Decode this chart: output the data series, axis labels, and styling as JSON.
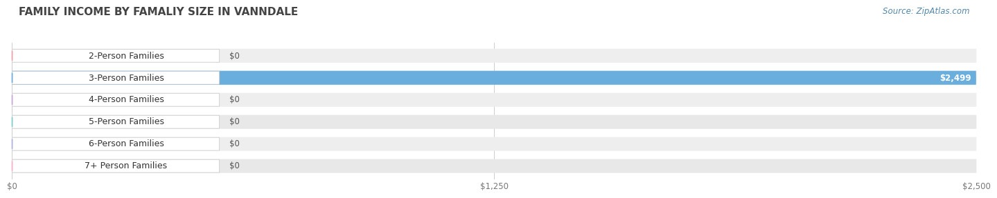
{
  "title": "FAMILY INCOME BY FAMALIY SIZE IN VANNDALE",
  "source": "Source: ZipAtlas.com",
  "categories": [
    "2-Person Families",
    "3-Person Families",
    "4-Person Families",
    "5-Person Families",
    "6-Person Families",
    "7+ Person Families"
  ],
  "values": [
    0,
    2499,
    0,
    0,
    0,
    0
  ],
  "bar_colors": [
    "#f0a0aa",
    "#6aaede",
    "#c8a8d2",
    "#7ececa",
    "#b0b0e0",
    "#f9b0c4"
  ],
  "value_labels": [
    "$0",
    "$2,499",
    "$0",
    "$0",
    "$0",
    "$0"
  ],
  "xlim": [
    0,
    2500
  ],
  "xticks": [
    0,
    1250,
    2500
  ],
  "xticklabels": [
    "$0",
    "$1,250",
    "$2,500"
  ],
  "background_color": "#ffffff",
  "row_bg_colors": [
    "#eeeeee",
    "#e8e8e8",
    "#eeeeee",
    "#e8e8e8",
    "#eeeeee",
    "#e8e8e8"
  ],
  "title_fontsize": 11,
  "label_fontsize": 9,
  "value_fontsize": 8.5,
  "source_fontsize": 8.5
}
